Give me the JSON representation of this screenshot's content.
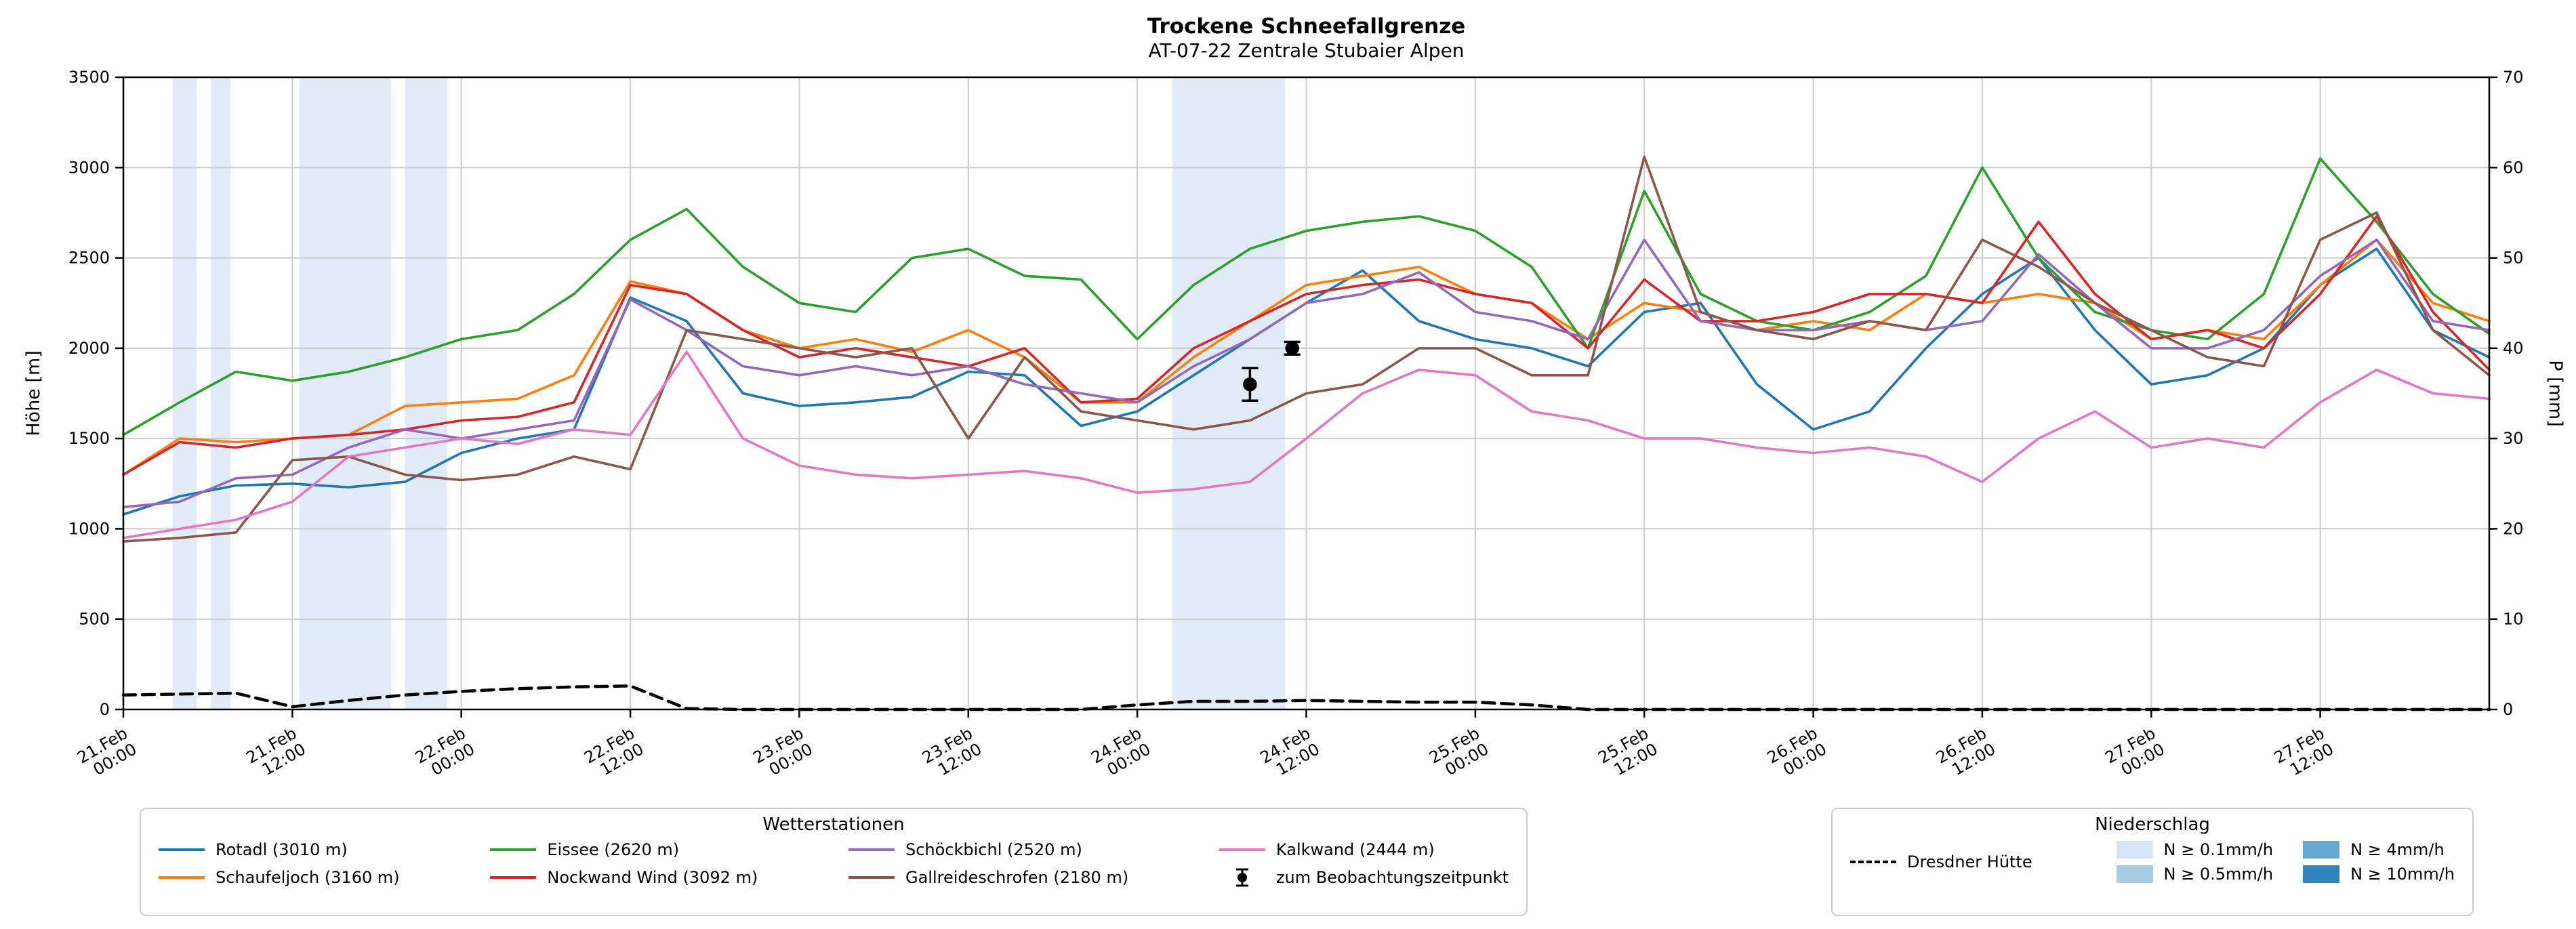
{
  "title": "Trockene Schneefallgrenze",
  "subtitle": "AT-07-22 Zentrale Stubaier Alpen",
  "axes": {
    "y_left_label": "Höhe [m]",
    "y_right_label": "P [mm]",
    "y_left_ticks": [
      0,
      500,
      1000,
      1500,
      2000,
      2500,
      3000,
      3500
    ],
    "y_right_ticks": [
      0,
      10,
      20,
      30,
      40,
      50,
      60,
      70
    ],
    "x_tick_hours": [
      0,
      12,
      24,
      36,
      48,
      60,
      72,
      84,
      96,
      108,
      120,
      132,
      144,
      156
    ],
    "x_tick_labels": [
      "21.Feb 00:00",
      "21.Feb 12:00",
      "22.Feb 00:00",
      "22.Feb 12:00",
      "23.Feb 00:00",
      "23.Feb 12:00",
      "24.Feb 00:00",
      "24.Feb 12:00",
      "25.Feb 00:00",
      "25.Feb 12:00",
      "26.Feb 00:00",
      "26.Feb 12:00",
      "27.Feb 00:00",
      "27.Feb 12:00"
    ]
  },
  "chart_data": {
    "type": "line",
    "title": "Trockene Schneefallgrenze",
    "subtitle": "AT-07-22 Zentrale Stubaier Alpen",
    "x_unit": "hours since 21.Feb 00:00",
    "x_range_hours": [
      0,
      168
    ],
    "x_step_hours": 4,
    "ylim_left": [
      0,
      3500
    ],
    "ylim_right": [
      0,
      70
    ],
    "series": [
      {
        "name": "Rotadl (3010 m)",
        "color": "#1f77b4",
        "axis": "left",
        "values": [
          1080,
          1180,
          1240,
          1250,
          1230,
          1260,
          1420,
          1500,
          1550,
          2280,
          2150,
          1750,
          1680,
          1700,
          1730,
          1870,
          1850,
          1570,
          1650,
          1850,
          2050,
          2250,
          2430,
          2150,
          2050,
          2000,
          1900,
          2200,
          2250,
          1800,
          1550,
          1650,
          2000,
          2300,
          2500,
          2100,
          1800,
          1850,
          2000,
          2350,
          2550,
          2100,
          1950
        ]
      },
      {
        "name": "Schaufeljoch (3160 m)",
        "color": "#ff7f0e",
        "axis": "left",
        "values": [
          1300,
          1500,
          1480,
          1500,
          1520,
          1680,
          1700,
          1720,
          1850,
          2370,
          2300,
          2100,
          2000,
          2050,
          1980,
          2100,
          1950,
          1700,
          1700,
          1950,
          2150,
          2350,
          2400,
          2450,
          2300,
          2250,
          2050,
          2250,
          2200,
          2100,
          2150,
          2100,
          2300,
          2250,
          2300,
          2250,
          2050,
          2100,
          2050,
          2350,
          2600,
          2250,
          2150
        ]
      },
      {
        "name": "Eissee (2620 m)",
        "color": "#2ca02c",
        "axis": "left",
        "values": [
          1520,
          1700,
          1870,
          1820,
          1870,
          1950,
          2050,
          2100,
          2300,
          2600,
          2770,
          2450,
          2250,
          2200,
          2500,
          2550,
          2400,
          2380,
          2050,
          2350,
          2550,
          2650,
          2700,
          2730,
          2650,
          2450,
          2000,
          2870,
          2300,
          2150,
          2100,
          2200,
          2400,
          3000,
          2500,
          2200,
          2100,
          2050,
          2300,
          3050,
          2700,
          2300,
          2080
        ]
      },
      {
        "name": "Nockwand Wind (3092 m)",
        "color": "#d62728",
        "axis": "left",
        "values": [
          1300,
          1480,
          1450,
          1500,
          1520,
          1550,
          1600,
          1620,
          1700,
          2350,
          2300,
          2100,
          1950,
          2000,
          1950,
          1900,
          2000,
          1700,
          1720,
          2000,
          2150,
          2300,
          2350,
          2380,
          2300,
          2250,
          2000,
          2380,
          2150,
          2150,
          2200,
          2300,
          2300,
          2250,
          2700,
          2300,
          2050,
          2100,
          2000,
          2300,
          2730,
          2200,
          1880
        ]
      },
      {
        "name": "Schöckbichl (2520 m)",
        "color": "#9467bd",
        "axis": "left",
        "values": [
          1120,
          1150,
          1280,
          1300,
          1450,
          1550,
          1500,
          1550,
          1600,
          2270,
          2100,
          1900,
          1850,
          1900,
          1850,
          1900,
          1800,
          1750,
          1700,
          1900,
          2050,
          2250,
          2300,
          2420,
          2200,
          2150,
          2050,
          2600,
          2150,
          2100,
          2100,
          2150,
          2100,
          2150,
          2520,
          2250,
          2000,
          2000,
          2100,
          2400,
          2600,
          2150,
          2100
        ]
      },
      {
        "name": "Gallreideschrofen (2180 m)",
        "color": "#8c564b",
        "axis": "left",
        "values": [
          930,
          950,
          980,
          1380,
          1400,
          1300,
          1270,
          1300,
          1400,
          1330,
          2100,
          2050,
          2000,
          1950,
          2000,
          1500,
          1950,
          1650,
          1600,
          1550,
          1600,
          1750,
          1800,
          2000,
          2000,
          1850,
          1850,
          3060,
          2200,
          2100,
          2050,
          2150,
          2100,
          2600,
          2450,
          2250,
          2100,
          1950,
          1900,
          2600,
          2750,
          2100,
          1850
        ]
      },
      {
        "name": "Kalkwand (2444 m)",
        "color": "#e377c2",
        "axis": "left",
        "values": [
          950,
          1000,
          1050,
          1150,
          1400,
          1450,
          1500,
          1470,
          1550,
          1520,
          1980,
          1500,
          1350,
          1300,
          1280,
          1300,
          1320,
          1280,
          1200,
          1220,
          1260,
          1500,
          1750,
          1880,
          1850,
          1650,
          1600,
          1500,
          1500,
          1450,
          1420,
          1450,
          1400,
          1260,
          1500,
          1650,
          1450,
          1500,
          1450,
          1700,
          1880,
          1750,
          1720
        ]
      },
      {
        "name": "Dresdner Hütte",
        "color": "#000000",
        "axis": "right",
        "dash": true,
        "values": [
          1.6,
          1.7,
          1.8,
          0.3,
          1.0,
          1.6,
          2.0,
          2.3,
          2.5,
          2.6,
          0.1,
          0,
          0,
          0,
          0,
          0,
          0,
          0,
          0.5,
          0.9,
          0.9,
          1.0,
          0.9,
          0.8,
          0.8,
          0.5,
          0,
          0,
          0,
          0,
          0,
          0,
          0,
          0,
          0,
          0,
          0,
          0,
          0,
          0,
          0,
          0,
          0
        ]
      }
    ],
    "precip_bands": [
      {
        "start_h": 3.5,
        "end_h": 5.2,
        "color": "#e1ebf7"
      },
      {
        "start_h": 6.2,
        "end_h": 7.6,
        "color": "#e1ebf7"
      },
      {
        "start_h": 12.5,
        "end_h": 19.0,
        "color": "#e1ebf7"
      },
      {
        "start_h": 20.0,
        "end_h": 23.0,
        "color": "#e1ebf7"
      },
      {
        "start_h": 74.5,
        "end_h": 82.5,
        "color": "#e1ebf7"
      }
    ],
    "observations": [
      {
        "hour": 80,
        "height_m": 1800,
        "err_m": 90
      },
      {
        "hour": 83,
        "height_m": 2000,
        "err_m": 35
      }
    ]
  },
  "legend_stations": {
    "title": "Wetterstationen",
    "items": [
      {
        "label": "Rotadl (3010 m)",
        "color": "#1f77b4"
      },
      {
        "label": "Schaufeljoch (3160 m)",
        "color": "#ff7f0e"
      },
      {
        "label": "Eissee (2620 m)",
        "color": "#2ca02c"
      },
      {
        "label": "Nockwand Wind (3092 m)",
        "color": "#d62728"
      },
      {
        "label": "Schöckbichl (2520 m)",
        "color": "#9467bd"
      },
      {
        "label": "Gallreideschrofen (2180 m)",
        "color": "#8c564b"
      },
      {
        "label": "Kalkwand (2444 m)",
        "color": "#e377c2"
      },
      {
        "label": "zum Beobachtungszeitpunkt",
        "marker": "obs"
      }
    ]
  },
  "legend_precip": {
    "title": "Niederschlag",
    "line_item": {
      "label": "Dresdner Hütte"
    },
    "levels": [
      {
        "label": "N ≥ 0.1mm/h",
        "color": "#d6e6f4"
      },
      {
        "label": "N ≥ 0.5mm/h",
        "color": "#a8cbe6"
      },
      {
        "label": "N ≥ 4mm/h",
        "color": "#68a9d4"
      },
      {
        "label": "N ≥ 10mm/h",
        "color": "#3282bd"
      }
    ]
  }
}
